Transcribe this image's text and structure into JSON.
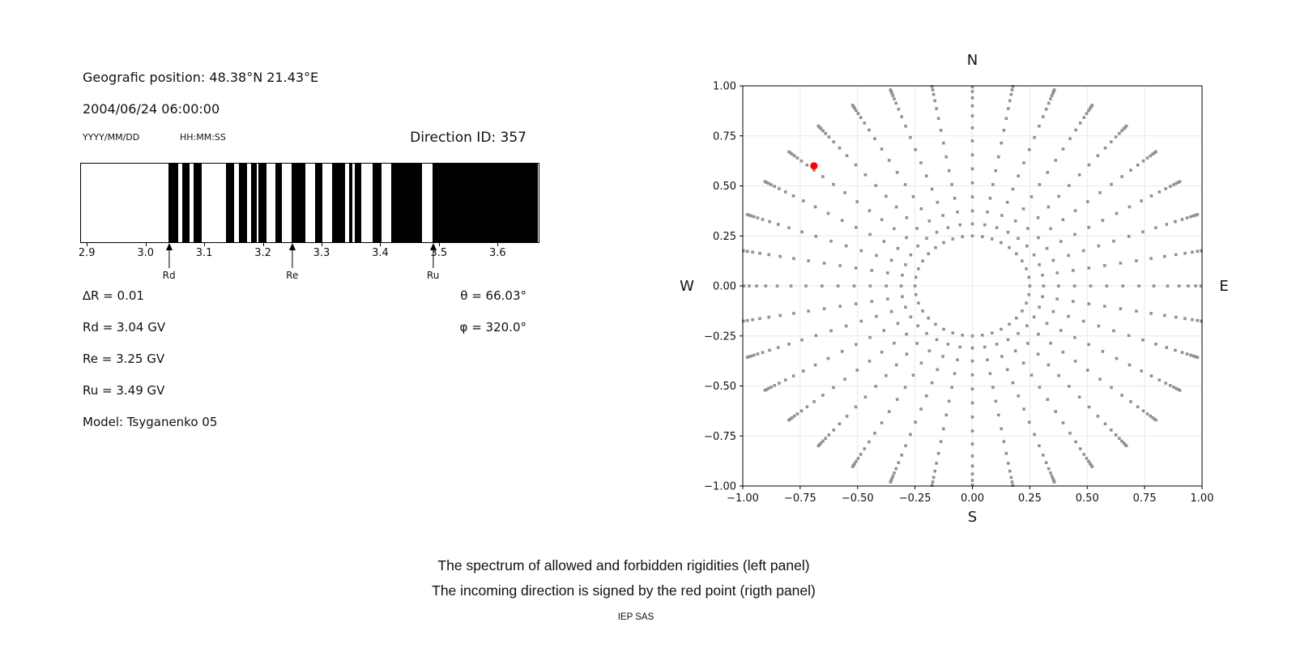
{
  "header": {
    "position_label": "Geografic position: 48.38°N 21.43°E",
    "datetime": "2004/06/24 06:00:00",
    "date_format": "YYYY/MM/DD",
    "time_format": "HH:MM:SS",
    "direction_id": "Direction ID: 357"
  },
  "params": {
    "delta_r": "∆R = 0.01",
    "rd": "Rd = 3.04 GV",
    "re": "Re = 3.25 GV",
    "ru": "Ru = 3.49 GV",
    "model": "Model: Tsyganenko 05",
    "theta": "θ = 66.03°",
    "phi": "φ = 320.0°"
  },
  "caption": {
    "line1": "The spectrum of allowed and forbidden rigidities (left panel)",
    "line2": "The incoming direction is signed by the red point (rigth panel)",
    "credit": "IEP SAS"
  },
  "chart_data": [
    {
      "type": "bar",
      "name": "rigidity-spectrum-barcode",
      "xlim": [
        2.89,
        3.67
      ],
      "xtick_values": [
        2.9,
        3.0,
        3.1,
        3.2,
        3.3,
        3.4,
        3.5,
        3.6
      ],
      "xtick_labels": [
        "2.9",
        "3.0",
        "3.1",
        "3.2",
        "3.3",
        "3.4",
        "3.5",
        "3.6"
      ],
      "delta_r_gv": 0.01,
      "allowed_color": "#ffffff",
      "forbidden_color": "#000000",
      "forbidden_segments_gv": [
        [
          3.04,
          3.057
        ],
        [
          3.064,
          3.076
        ],
        [
          3.083,
          3.097
        ],
        [
          3.138,
          3.152
        ],
        [
          3.161,
          3.174
        ],
        [
          3.181,
          3.191
        ],
        [
          3.194,
          3.207
        ],
        [
          3.223,
          3.234
        ],
        [
          3.251,
          3.274
        ],
        [
          3.291,
          3.303
        ],
        [
          3.32,
          3.342
        ],
        [
          3.348,
          3.354
        ],
        [
          3.358,
          3.369
        ],
        [
          3.388,
          3.403
        ],
        [
          3.42,
          3.472
        ],
        [
          3.49,
          3.67
        ]
      ],
      "markers": [
        {
          "label": "Rd",
          "value_gv": 3.04
        },
        {
          "label": "Re",
          "value_gv": 3.25
        },
        {
          "label": "Ru",
          "value_gv": 3.49
        }
      ]
    },
    {
      "type": "scatter",
      "name": "asymptotic-direction-map",
      "xlim": [
        -1,
        1
      ],
      "ylim": [
        -1,
        1
      ],
      "grid": true,
      "tick_values": [
        -1,
        -0.75,
        -0.5,
        -0.25,
        0,
        0.25,
        0.5,
        0.75,
        1
      ],
      "tick_labels": [
        "−1.00",
        "−0.75",
        "−0.50",
        "−0.25",
        "0.00",
        "0.25",
        "0.50",
        "0.75",
        "1.00"
      ],
      "compass": {
        "north": "N",
        "south": "S",
        "east": "E",
        "west": "W"
      },
      "spoke_angles_deg": [
        0,
        10,
        20,
        30,
        40,
        50,
        60,
        70,
        80,
        90,
        100,
        110,
        120,
        130,
        140,
        150,
        160,
        170,
        180,
        190,
        200,
        210,
        220,
        230,
        240,
        250,
        260,
        270,
        280,
        290,
        300,
        310,
        320,
        330,
        340,
        350
      ],
      "spoke_radii": [
        0.25,
        0.31,
        0.375,
        0.445,
        0.515,
        0.585,
        0.655,
        0.725,
        0.79,
        0.85,
        0.9,
        0.94,
        0.972,
        0.995,
        1.012,
        1.025,
        1.035,
        1.043
      ],
      "dot_color": "#919191",
      "grid_color": "#e9e9e9",
      "red_point": {
        "x": -0.69,
        "y": 0.6,
        "color": "#ff0000"
      }
    }
  ]
}
